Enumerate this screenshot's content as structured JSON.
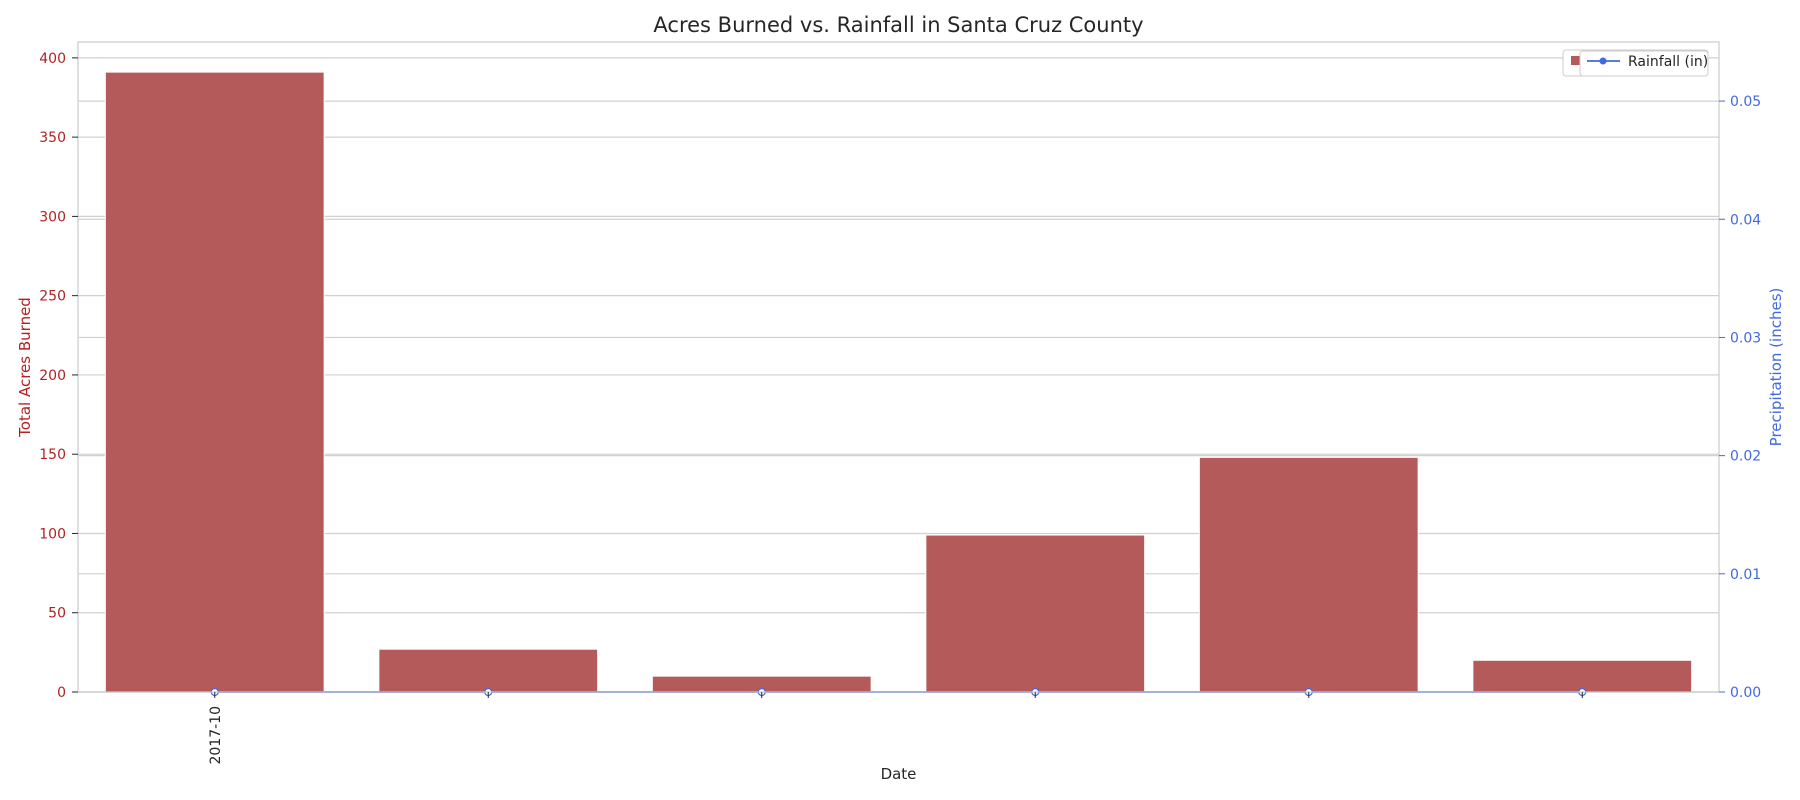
{
  "chart_data": {
    "type": "bar",
    "title": "Acres Burned vs. Rainfall in Santa Cruz County",
    "xlabel": "Date",
    "x_tick_labels": [
      "2017-10",
      "",
      "",
      "",
      "",
      ""
    ],
    "grid": true,
    "left_axis": {
      "label": "Total Acres Burned",
      "color": "#b22222",
      "ylim": [
        0,
        410
      ],
      "ticks": [
        0,
        50,
        100,
        150,
        200,
        250,
        300,
        350,
        400
      ]
    },
    "right_axis": {
      "label": "Precipitation (inches)",
      "color": "#4169e1",
      "ylim": [
        0,
        0.055
      ],
      "ticks": [
        "0.00",
        "0.01",
        "0.02",
        "0.03",
        "0.04",
        "0.05"
      ]
    },
    "series": [
      {
        "name": "Acres Burned",
        "type": "bar",
        "axis": "left",
        "color": "#b55a5a",
        "values": [
          391,
          27,
          10,
          99,
          148,
          20
        ]
      },
      {
        "name": "Rainfall (in)",
        "type": "line",
        "axis": "right",
        "color": "#4169e1",
        "values": [
          0,
          0,
          0,
          0,
          0,
          0
        ]
      }
    ],
    "legend": {
      "placement": "top-right",
      "visible_text": "Rainfall (in)"
    }
  }
}
